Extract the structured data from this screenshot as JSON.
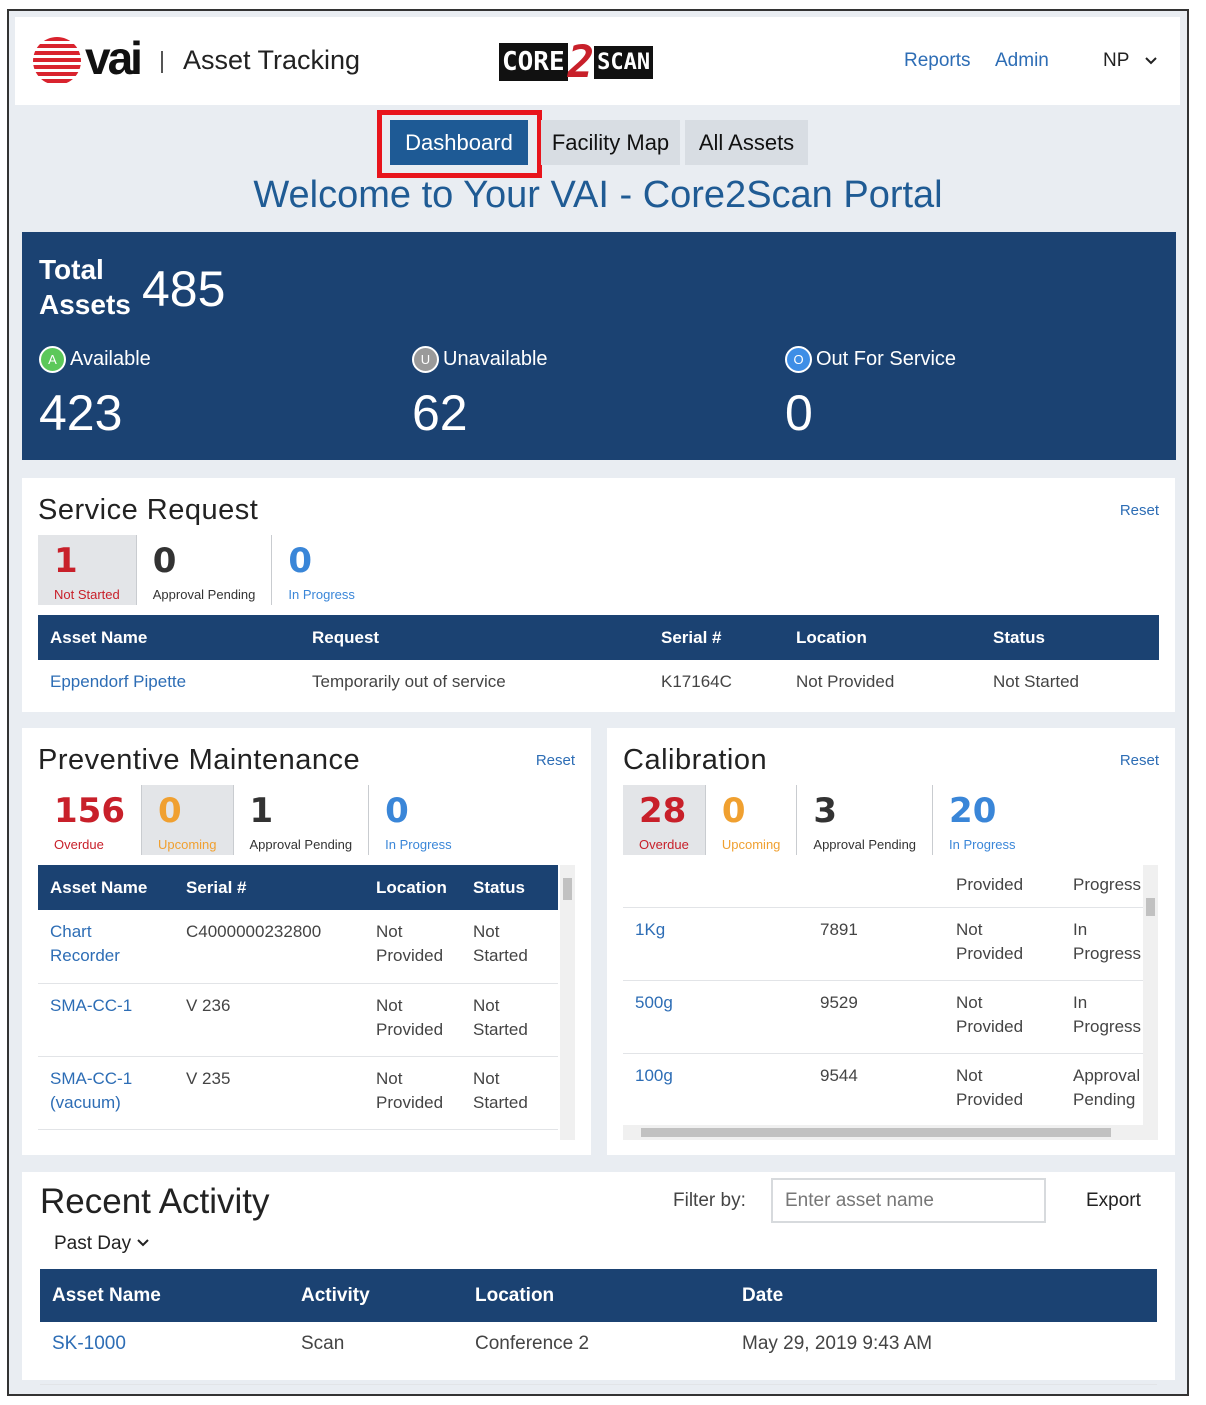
{
  "header": {
    "brand": "vai",
    "app_name": "Asset Tracking",
    "logo": [
      "CORE",
      "2",
      "SCAN"
    ],
    "nav": [
      "Reports",
      "Admin"
    ],
    "user": "NP"
  },
  "tabs": {
    "items": [
      "Dashboard",
      "Facility Map",
      "All Assets"
    ],
    "active": 0
  },
  "welcome": "Welcome to Your VAI - Core2Scan Portal",
  "summary": {
    "total_label": "Total Assets",
    "total": 485,
    "statuses": [
      {
        "badge": "A",
        "label": "Available",
        "value": 423,
        "color": "#5cc85a"
      },
      {
        "badge": "U",
        "label": "Unavailable",
        "value": 62,
        "color": "#9a9a9a"
      },
      {
        "badge": "O",
        "label": "Out For Service",
        "value": 0,
        "color": "#3e8ee6"
      }
    ]
  },
  "service_request": {
    "title": "Service Request",
    "reset": "Reset",
    "stats": [
      {
        "value": 1,
        "label": "Not Started",
        "color": "#c8202a",
        "active": true
      },
      {
        "value": 0,
        "label": "Approval Pending",
        "color": "#333333",
        "active": false
      },
      {
        "value": 0,
        "label": "In Progress",
        "color": "#3a86d8",
        "active": false
      }
    ],
    "columns": [
      "Asset Name",
      "Request",
      "Serial #",
      "Location",
      "Status"
    ],
    "rows": [
      [
        "Eppendorf Pipette",
        "Temporarily out of service",
        "K17164C",
        "Not Provided",
        "Not Started"
      ]
    ]
  },
  "preventive_maintenance": {
    "title": "Preventive Maintenance",
    "reset": "Reset",
    "stats": [
      {
        "value": 156,
        "label": "Overdue",
        "color": "#c8202a",
        "active": false
      },
      {
        "value": 0,
        "label": "Upcoming",
        "color": "#f0a030",
        "active": true
      },
      {
        "value": 1,
        "label": "Approval Pending",
        "color": "#333333",
        "active": false
      },
      {
        "value": 0,
        "label": "In Progress",
        "color": "#3a86d8",
        "active": false
      }
    ],
    "columns": [
      "Asset Name",
      "Serial #",
      "Location",
      "Status"
    ],
    "rows": [
      [
        "Chart Recorder",
        "C4000000232800",
        "Not Provided",
        "Not Started"
      ],
      [
        "SMA-CC-1",
        "V 236",
        "Not Provided",
        "Not Started"
      ],
      [
        "SMA-CC-1 (vacuum)",
        "V 235",
        "Not Provided",
        "Not Started"
      ]
    ]
  },
  "calibration": {
    "title": "Calibration",
    "reset": "Reset",
    "stats": [
      {
        "value": 28,
        "label": "Overdue",
        "color": "#c8202a",
        "active": true
      },
      {
        "value": 0,
        "label": "Upcoming",
        "color": "#f0a030",
        "active": false
      },
      {
        "value": 3,
        "label": "Approval Pending",
        "color": "#333333",
        "active": false
      },
      {
        "value": 20,
        "label": "In Progress",
        "color": "#3a86d8",
        "active": false
      }
    ],
    "rows": [
      [
        null,
        null,
        "Provided",
        "Progress"
      ],
      [
        "1Kg",
        "7891",
        "Not Provided",
        "In Progress"
      ],
      [
        "500g",
        "9529",
        "Not Provided",
        "In Progress"
      ],
      [
        "100g",
        "9544",
        "Not Provided",
        "Approval Pending"
      ]
    ]
  },
  "recent_activity": {
    "title": "Recent Activity",
    "period": "Past Day",
    "filter_label": "Filter by:",
    "filter_placeholder": "Enter asset name",
    "export": "Export",
    "columns": [
      "Asset Name",
      "Activity",
      "Location",
      "Date"
    ],
    "rows": [
      [
        "SK-1000",
        "Scan",
        "Conference 2",
        "May 29, 2019 9:43 AM"
      ]
    ]
  }
}
